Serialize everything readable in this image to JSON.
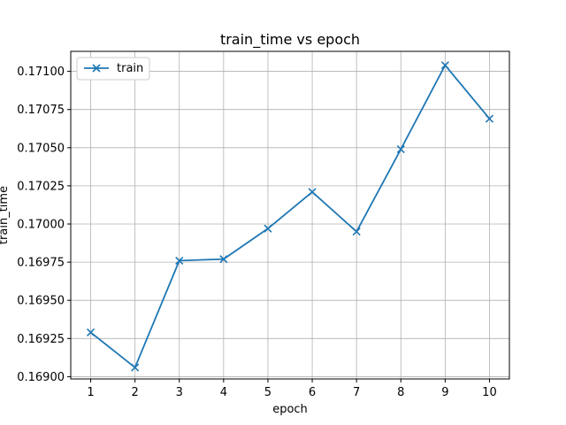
{
  "chart_data": {
    "type": "line",
    "title": "train_time vs epoch",
    "xlabel": "epoch",
    "ylabel": "train_time",
    "x": [
      1,
      2,
      3,
      4,
      5,
      6,
      7,
      8,
      9,
      10
    ],
    "xticks": [
      "1",
      "2",
      "3",
      "4",
      "5",
      "6",
      "7",
      "8",
      "9",
      "10"
    ],
    "xlim": [
      0.55,
      10.45
    ],
    "yticks": [
      "0.16900",
      "0.16925",
      "0.16950",
      "0.16975",
      "0.17000",
      "0.17025",
      "0.17050",
      "0.17075",
      "0.17100"
    ],
    "ytick_values": [
      0.169,
      0.16925,
      0.1695,
      0.16975,
      0.17,
      0.17025,
      0.1705,
      0.17075,
      0.171
    ],
    "ylim": [
      0.168985,
      0.171131
    ],
    "grid": true,
    "legend_position": "top-left",
    "series": [
      {
        "name": "train",
        "marker": "x",
        "color": "#1f77b4",
        "values": [
          0.16929,
          0.16906,
          0.16976,
          0.16977,
          0.16997,
          0.17021,
          0.16995,
          0.17049,
          0.17104,
          0.17069
        ]
      }
    ]
  }
}
